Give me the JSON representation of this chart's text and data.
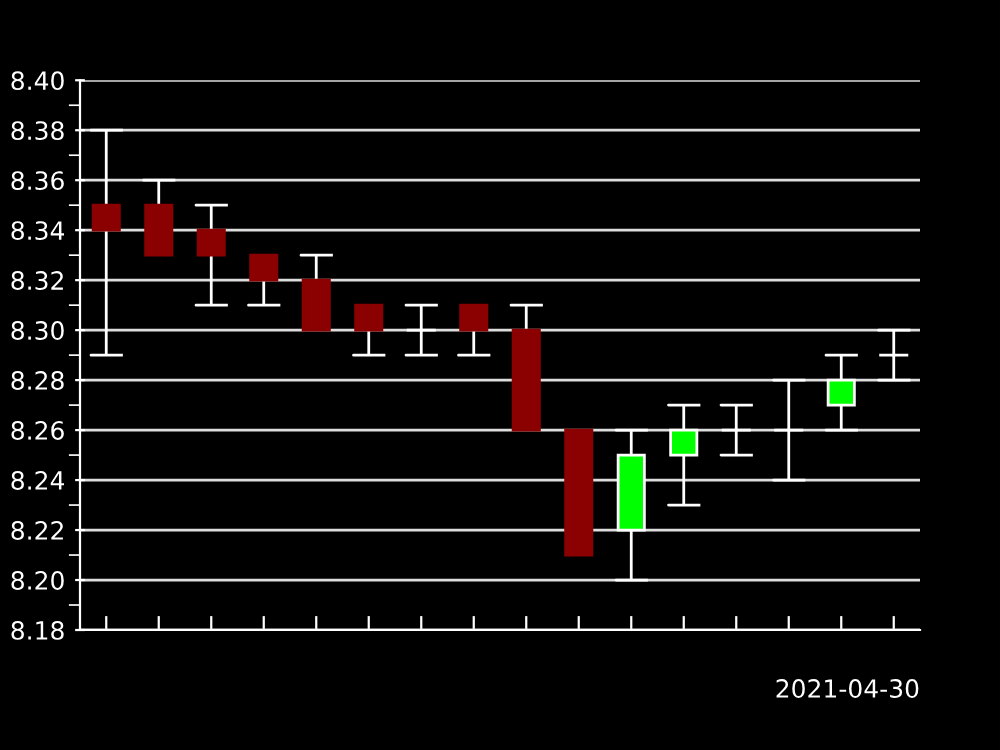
{
  "chart_data": {
    "type": "candlestick",
    "categories": [
      null,
      null,
      null,
      null,
      null,
      null,
      null,
      null,
      null,
      null,
      null,
      null,
      null,
      null,
      null,
      null
    ],
    "ohlc": [
      [
        8.35,
        8.38,
        8.29,
        8.34
      ],
      [
        8.35,
        8.36,
        8.33,
        8.33
      ],
      [
        8.34,
        8.35,
        8.31,
        8.33
      ],
      [
        8.33,
        8.33,
        8.31,
        8.32
      ],
      [
        8.32,
        8.33,
        8.3,
        8.3
      ],
      [
        8.31,
        8.31,
        8.29,
        8.3
      ],
      [
        8.3,
        8.31,
        8.29,
        8.3
      ],
      [
        8.31,
        8.31,
        8.29,
        8.3
      ],
      [
        8.3,
        8.31,
        8.26,
        8.26
      ],
      [
        8.26,
        8.26,
        8.21,
        8.21
      ],
      [
        8.22,
        8.26,
        8.2,
        8.25
      ],
      [
        8.25,
        8.27,
        8.23,
        8.26
      ],
      [
        8.26,
        8.27,
        8.25,
        8.26
      ],
      [
        8.26,
        8.28,
        8.24,
        8.26
      ],
      [
        8.27,
        8.29,
        8.26,
        8.28
      ],
      [
        8.29,
        8.3,
        8.28,
        8.29
      ]
    ],
    "colors": [
      "#8b0000",
      "#8b0000",
      "#8b0000",
      "#8b0000",
      "#8b0000",
      "#8b0000",
      "#ffffff",
      "#8b0000",
      "#8b0000",
      "#8b0000",
      "#00ff00",
      "#00ff00",
      "#ffffff",
      "#ffffff",
      "#00ff00",
      "#ffffff"
    ],
    "xlabel": "2021-04-30",
    "ylim": [
      8.18,
      8.4
    ],
    "yticks": [
      {
        "value": 8.18,
        "label": "8.18"
      },
      {
        "value": 8.2,
        "label": "8.20"
      },
      {
        "value": 8.22,
        "label": "8.22"
      },
      {
        "value": 8.24,
        "label": "8.24"
      },
      {
        "value": 8.26,
        "label": "8.26"
      },
      {
        "value": 8.28,
        "label": "8.28"
      },
      {
        "value": 8.3,
        "label": "8.30"
      },
      {
        "value": 8.32,
        "label": "8.32"
      },
      {
        "value": 8.34,
        "label": "8.34"
      },
      {
        "value": 8.36,
        "label": "8.36"
      },
      {
        "value": 8.38,
        "label": "8.38"
      },
      {
        "value": 8.4,
        "label": "8.40"
      }
    ],
    "grid": "y"
  }
}
